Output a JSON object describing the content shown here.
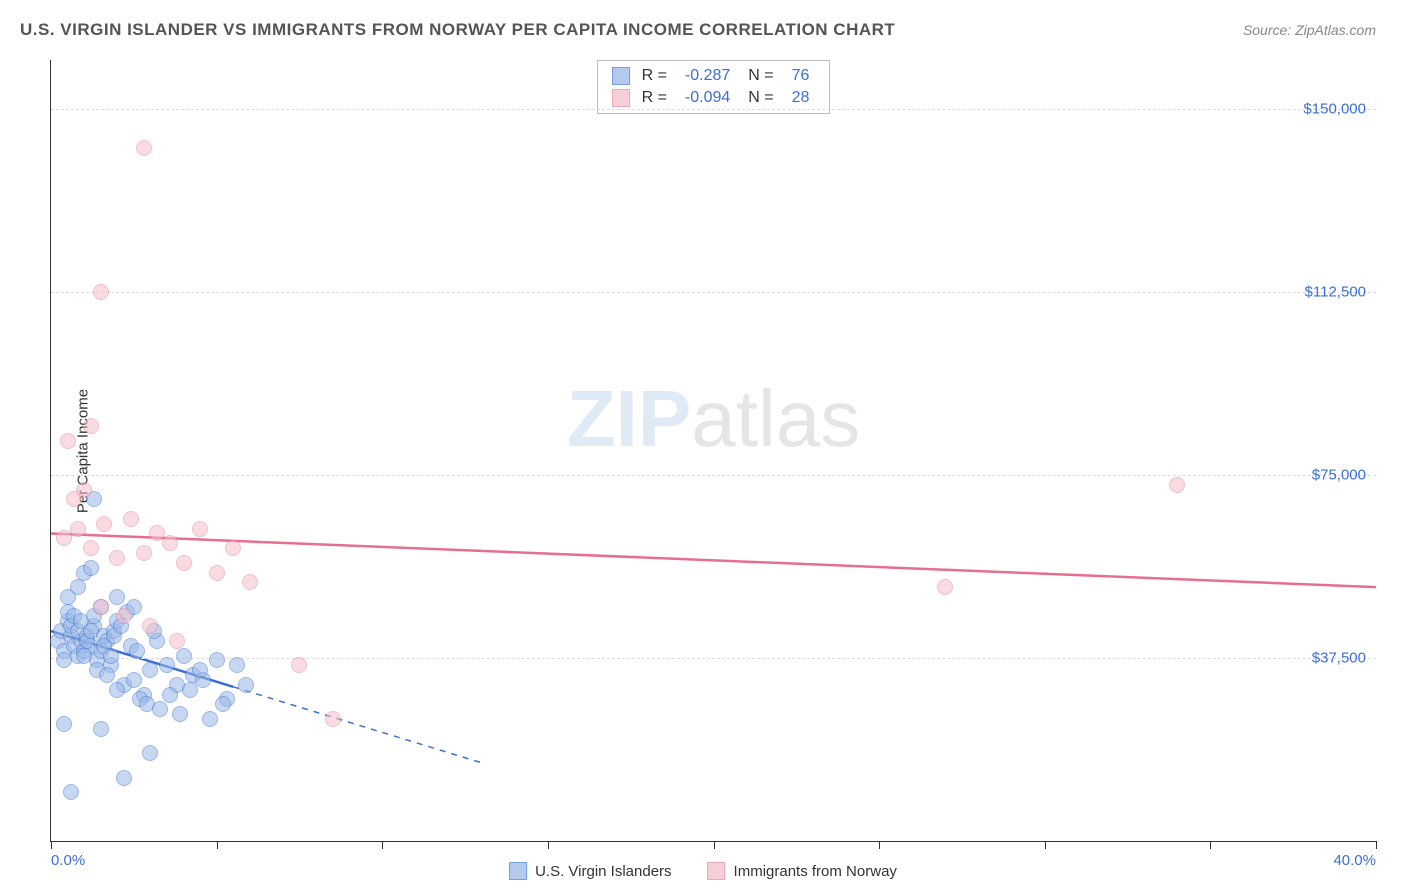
{
  "title": "U.S. VIRGIN ISLANDER VS IMMIGRANTS FROM NORWAY PER CAPITA INCOME CORRELATION CHART",
  "source": "Source: ZipAtlas.com",
  "watermark_zip": "ZIP",
  "watermark_atlas": "atlas",
  "chart": {
    "type": "scatter",
    "ylabel": "Per Capita Income",
    "x_min": 0,
    "x_max": 40,
    "y_min": 0,
    "y_max": 160000,
    "background_color": "#ffffff",
    "grid_color": "#dddddd",
    "axis_color": "#333333",
    "y_gridlines": [
      37500,
      75000,
      112500,
      150000
    ],
    "y_tick_labels": [
      "$37,500",
      "$75,000",
      "$112,500",
      "$150,000"
    ],
    "x_ticks": [
      0,
      5,
      10,
      15,
      20,
      25,
      30,
      35,
      40
    ],
    "x_tick_labels_shown": {
      "0": "0.0%",
      "40": "40.0%"
    },
    "marker_radius": 8,
    "marker_stroke_width": 1.5,
    "series": [
      {
        "name": "U.S. Virgin Islanders",
        "fill": "#9ab8e8",
        "stroke": "#4a7dd1",
        "fill_opacity": 0.55,
        "R": "-0.287",
        "N": "76",
        "trend": {
          "color": "#3b6fd6",
          "width": 2.5,
          "y_at_x0": 43000,
          "y_at_x40": -40000,
          "solid_until_x": 5.5,
          "dash_until_x": 13
        },
        "points": [
          [
            0.2,
            41000
          ],
          [
            0.3,
            43000
          ],
          [
            0.4,
            39000
          ],
          [
            0.5,
            45000
          ],
          [
            0.4,
            37000
          ],
          [
            0.6,
            42000
          ],
          [
            0.7,
            40000
          ],
          [
            0.5,
            47000
          ],
          [
            0.8,
            38000
          ],
          [
            0.6,
            44000
          ],
          [
            0.9,
            41000
          ],
          [
            0.7,
            46000
          ],
          [
            1.0,
            39000
          ],
          [
            0.8,
            43000
          ],
          [
            1.1,
            42000
          ],
          [
            0.9,
            45000
          ],
          [
            1.2,
            40000
          ],
          [
            1.0,
            38000
          ],
          [
            1.3,
            44000
          ],
          [
            1.1,
            41000
          ],
          [
            1.4,
            37000
          ],
          [
            1.2,
            43000
          ],
          [
            1.5,
            39000
          ],
          [
            1.3,
            46000
          ],
          [
            1.6,
            42000
          ],
          [
            1.4,
            35000
          ],
          [
            1.7,
            41000
          ],
          [
            1.5,
            48000
          ],
          [
            1.8,
            36000
          ],
          [
            1.6,
            40000
          ],
          [
            1.9,
            43000
          ],
          [
            1.7,
            34000
          ],
          [
            2.0,
            45000
          ],
          [
            1.8,
            38000
          ],
          [
            2.2,
            32000
          ],
          [
            1.9,
            42000
          ],
          [
            2.4,
            40000
          ],
          [
            2.0,
            31000
          ],
          [
            2.6,
            39000
          ],
          [
            2.1,
            44000
          ],
          [
            2.8,
            30000
          ],
          [
            2.3,
            47000
          ],
          [
            3.0,
            35000
          ],
          [
            2.5,
            33000
          ],
          [
            3.2,
            41000
          ],
          [
            2.7,
            29000
          ],
          [
            3.5,
            36000
          ],
          [
            2.9,
            28000
          ],
          [
            3.8,
            32000
          ],
          [
            3.1,
            43000
          ],
          [
            4.0,
            38000
          ],
          [
            3.3,
            27000
          ],
          [
            4.3,
            34000
          ],
          [
            3.6,
            30000
          ],
          [
            4.6,
            33000
          ],
          [
            3.9,
            26000
          ],
          [
            5.0,
            37000
          ],
          [
            4.2,
            31000
          ],
          [
            5.3,
            29000
          ],
          [
            4.5,
            35000
          ],
          [
            5.6,
            36000
          ],
          [
            4.8,
            25000
          ],
          [
            5.9,
            32000
          ],
          [
            5.2,
            28000
          ],
          [
            1.3,
            70000
          ],
          [
            0.5,
            50000
          ],
          [
            0.8,
            52000
          ],
          [
            1.0,
            55000
          ],
          [
            1.2,
            56000
          ],
          [
            2.0,
            50000
          ],
          [
            2.5,
            48000
          ],
          [
            0.4,
            24000
          ],
          [
            1.5,
            23000
          ],
          [
            3.0,
            18000
          ],
          [
            0.6,
            10000
          ],
          [
            2.2,
            13000
          ]
        ]
      },
      {
        "name": "Immigrants from Norway",
        "fill": "#f5c0cc",
        "stroke": "#e58ba3",
        "fill_opacity": 0.55,
        "R": "-0.094",
        "N": "28",
        "trend": {
          "color": "#e56f8f",
          "width": 2.5,
          "y_at_x0": 63000,
          "y_at_x40": 52000,
          "solid_until_x": 40
        },
        "points": [
          [
            0.4,
            62000
          ],
          [
            0.8,
            64000
          ],
          [
            1.2,
            60000
          ],
          [
            1.6,
            65000
          ],
          [
            2.0,
            58000
          ],
          [
            2.4,
            66000
          ],
          [
            2.8,
            59000
          ],
          [
            3.2,
            63000
          ],
          [
            3.6,
            61000
          ],
          [
            4.0,
            57000
          ],
          [
            4.5,
            64000
          ],
          [
            5.0,
            55000
          ],
          [
            5.5,
            60000
          ],
          [
            6.0,
            53000
          ],
          [
            1.5,
            48000
          ],
          [
            2.2,
            46000
          ],
          [
            3.0,
            44000
          ],
          [
            3.8,
            41000
          ],
          [
            7.5,
            36000
          ],
          [
            8.5,
            25000
          ],
          [
            0.7,
            70000
          ],
          [
            1.0,
            72000
          ],
          [
            0.5,
            82000
          ],
          [
            1.2,
            85000
          ],
          [
            1.5,
            112500
          ],
          [
            2.8,
            142000
          ],
          [
            27.0,
            52000
          ],
          [
            34.0,
            73000
          ]
        ]
      }
    ]
  },
  "stats_labels": {
    "R": "R =",
    "N": "N ="
  },
  "title_fontsize": 17,
  "label_fontsize": 15,
  "tick_fontsize": 15,
  "tick_color": "#3b6fd6"
}
